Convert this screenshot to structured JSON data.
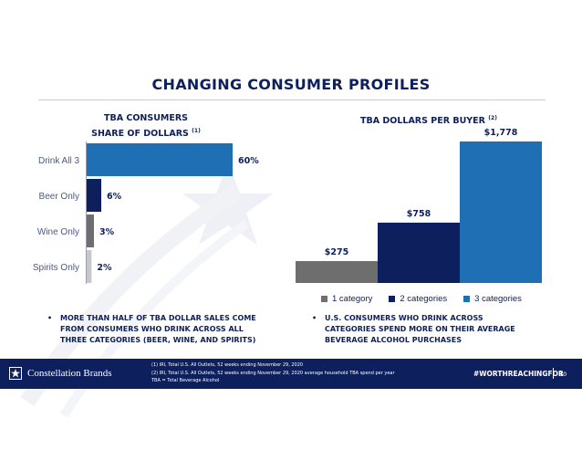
{
  "slide": {
    "title": "CHANGING CONSUMER PROFILES",
    "left_subtitle_line1": "TBA CONSUMERS",
    "left_subtitle_line2": "SHARE OF DOLLARS",
    "left_subtitle_note": "(1)",
    "right_subtitle": "TBA DOLLARS PER BUYER",
    "right_subtitle_note": "(2)",
    "left_bullet": [
      "MORE THAN HALF OF TBA DOLLAR SALES COME",
      "FROM CONSUMERS WHO DRINK ACROSS ALL",
      "THREE CATEGORIES (BEER, WINE, AND SPIRITS)"
    ],
    "right_bullet": [
      "U.S. CONSUMERS WHO DRINK ACROSS",
      "CATEGORIES SPEND MORE ON THEIR AVERAGE",
      "BEVERAGE ALCOHOL PURCHASES"
    ],
    "bullet_symbol": "•"
  },
  "footer": {
    "brand": "Constellation Brands",
    "notes": [
      "(1) IRI, Total U.S. All Outlets, 52 weeks ending November 29, 2020",
      "(2) IRI, Total U.S. All Outlets, 52 weeks ending November 29, 2020 average household TBA spend per year",
      "TBA = Total Beverage Alcohol"
    ],
    "hashtag": "#WORTHREACHINGFOR",
    "page_number": "10"
  },
  "colors": {
    "navy": "#0d1f5c",
    "blue": "#1f6fb5",
    "gray": "#6e6e6e",
    "light_gray": "#c8c8c8",
    "category_label": "#4a5a86"
  },
  "chart_data": [
    {
      "type": "bar",
      "orientation": "horizontal",
      "categories": [
        "Drink All 3",
        "Beer Only",
        "Wine Only",
        "Spirits Only"
      ],
      "values": [
        60,
        6,
        3,
        2
      ],
      "value_labels": [
        "60%",
        "6%",
        "3%",
        "2%"
      ],
      "colors": [
        "#1f6fb5",
        "#0d1f5c",
        "#6e6e6e",
        "#c8c8c8"
      ],
      "xlim": [
        0,
        60
      ]
    },
    {
      "type": "bar",
      "categories": [
        "1 category",
        "2 categories",
        "3 categories"
      ],
      "values": [
        275,
        758,
        1778
      ],
      "value_labels": [
        "$275",
        "$758",
        "$1,778"
      ],
      "colors": [
        "#6e6e6e",
        "#0d1f5c",
        "#1f6fb5"
      ],
      "legend": [
        "1 category",
        "2 categories",
        "3 categories"
      ],
      "legend_position": "bottom",
      "ylim": [
        0,
        1778
      ]
    }
  ]
}
